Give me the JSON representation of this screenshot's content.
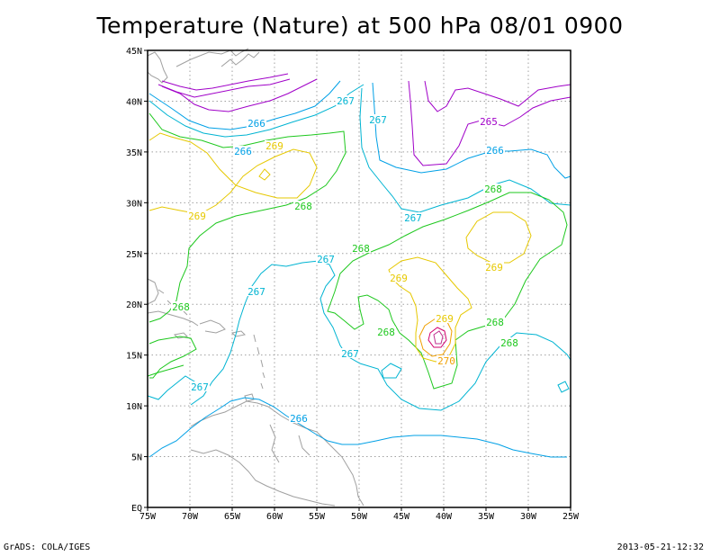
{
  "title": "Temperature (Nature) at 500 hPa 08/01 0900",
  "footer": {
    "left": "GrADS: COLA/IGES",
    "right": "2013-05-21-12:32"
  },
  "axes": {
    "x_ticks": [
      "75W",
      "70W",
      "65W",
      "60W",
      "55W",
      "50W",
      "45W",
      "40W",
      "35W",
      "30W",
      "25W"
    ],
    "y_ticks": [
      "EQ",
      "5N",
      "10N",
      "15N",
      "20N",
      "25N",
      "30N",
      "35N",
      "40N",
      "45N"
    ]
  },
  "colors": {
    "265": "#a000c8",
    "266": "#00a0e6",
    "267": "#00b4d2",
    "268": "#1ec81e",
    "269": "#e6c800",
    "270": "#f0a000",
    "271": "#d2006e",
    "land": "#a0a0a0",
    "grid": "#a0a0a0"
  },
  "contour_labels": [
    {
      "text": "265",
      "level": "265"
    },
    {
      "text": "266",
      "level": "266"
    },
    {
      "text": "266",
      "level": "266"
    },
    {
      "text": "266",
      "level": "266"
    },
    {
      "text": "266",
      "level": "266"
    },
    {
      "text": "267",
      "level": "267"
    },
    {
      "text": "267",
      "level": "267"
    },
    {
      "text": "267",
      "level": "267"
    },
    {
      "text": "267",
      "level": "267"
    },
    {
      "text": "267",
      "level": "267"
    },
    {
      "text": "267",
      "level": "267"
    },
    {
      "text": "267",
      "level": "267"
    },
    {
      "text": "268",
      "level": "268"
    },
    {
      "text": "268",
      "level": "268"
    },
    {
      "text": "268",
      "level": "268"
    },
    {
      "text": "268",
      "level": "268"
    },
    {
      "text": "268",
      "level": "268"
    },
    {
      "text": "268",
      "level": "268"
    },
    {
      "text": "268",
      "level": "268"
    },
    {
      "text": "269",
      "level": "269"
    },
    {
      "text": "269",
      "level": "269"
    },
    {
      "text": "269",
      "level": "269"
    },
    {
      "text": "269",
      "level": "269"
    },
    {
      "text": "269",
      "level": "269"
    },
    {
      "text": "270",
      "level": "270"
    }
  ]
}
